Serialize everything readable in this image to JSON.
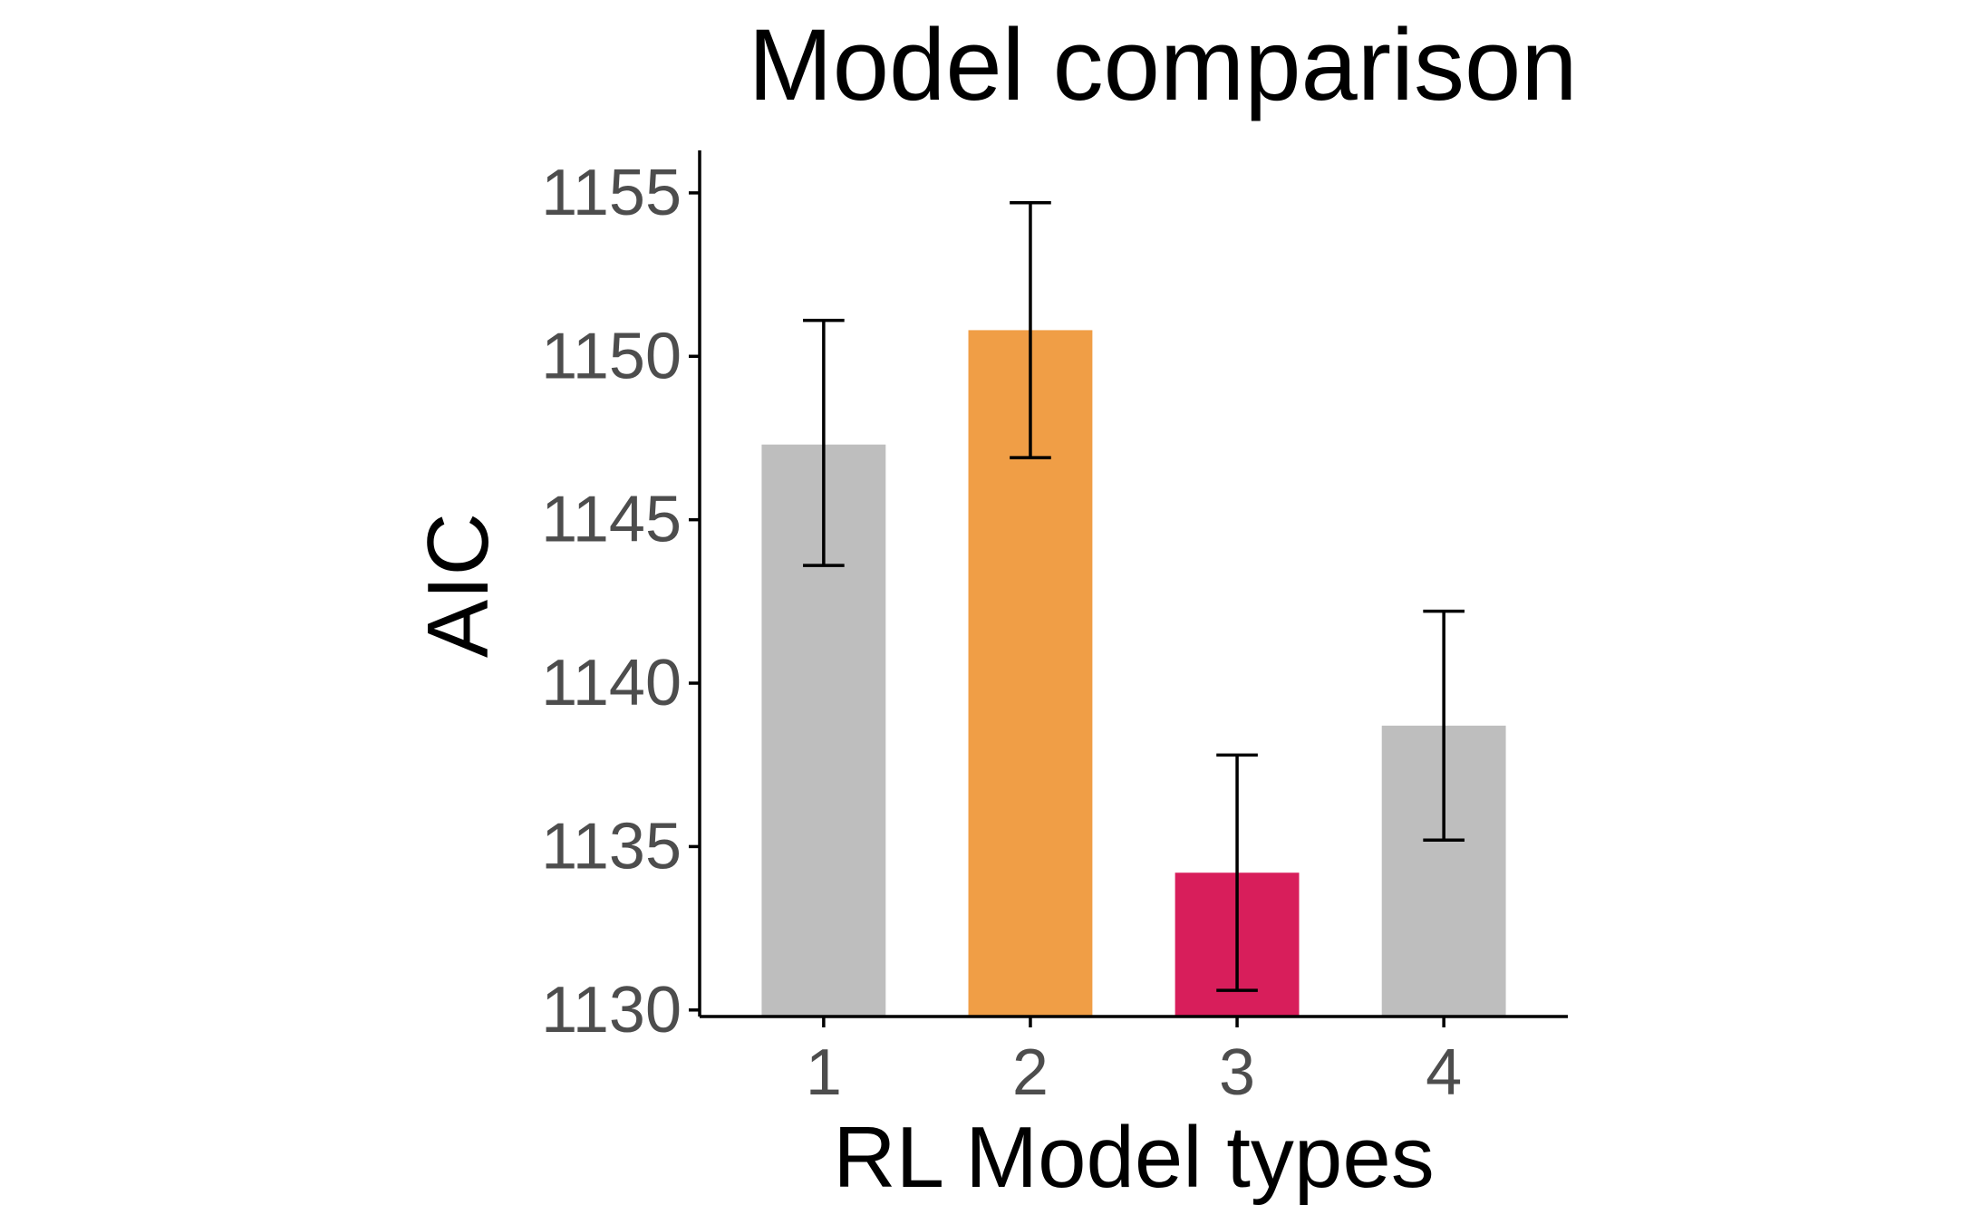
{
  "chart_data": {
    "type": "bar",
    "title": "Model comparison",
    "xlabel": "RL Model types",
    "ylabel": "AIC",
    "categories": [
      "1",
      "2",
      "3",
      "4"
    ],
    "values": [
      1147.3,
      1150.8,
      1134.2,
      1138.7
    ],
    "error_low": [
      1143.6,
      1146.9,
      1130.6,
      1135.2
    ],
    "error_high": [
      1151.1,
      1154.7,
      1137.8,
      1142.2
    ],
    "colors": [
      "#bebebe",
      "#f09e46",
      "#d81e5b",
      "#bebebe"
    ],
    "ylim": [
      1129.8,
      1156.3
    ],
    "y_baseline": 1129.8,
    "yticks": [
      1130,
      1135,
      1140,
      1145,
      1150,
      1155
    ],
    "grid": false,
    "legend": "none"
  }
}
